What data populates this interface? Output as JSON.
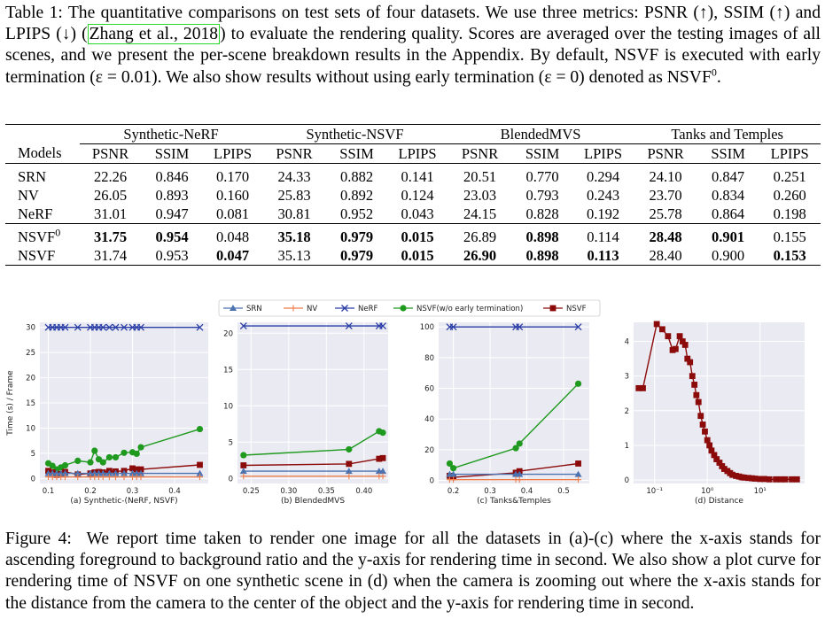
{
  "table_caption": {
    "label": "Table 1:",
    "text_a": "The quantitative comparisons on test sets of four datasets. We use three metrics: PSNR (↑), SSIM (↑) and LPIPS (↓) (",
    "cite": "Zhang et al., 2018",
    "text_b": ") to evaluate the rendering quality. Scores are averaged over the testing images of all scenes, and we present the per-scene breakdown results in the Appendix. By default, NSVF is executed with early termination (ε = 0.01). We also show results without using early termination (ε = 0) denoted as NSVF",
    "sup": "0",
    "text_c": "."
  },
  "table": {
    "groups": [
      "Synthetic-NeRF",
      "Synthetic-NSVF",
      "BlendedMVS",
      "Tanks and Temples"
    ],
    "models_header": "Models",
    "metrics": [
      "PSNR",
      "SSIM",
      "LPIPS"
    ],
    "rows": [
      {
        "model": "SRN",
        "sup": "",
        "values": [
          "22.26",
          "0.846",
          "0.170",
          "24.33",
          "0.882",
          "0.141",
          "20.51",
          "0.770",
          "0.294",
          "24.10",
          "0.847",
          "0.251"
        ],
        "bold": []
      },
      {
        "model": "NV",
        "sup": "",
        "values": [
          "26.05",
          "0.893",
          "0.160",
          "25.83",
          "0.892",
          "0.124",
          "23.03",
          "0.793",
          "0.243",
          "23.70",
          "0.834",
          "0.260"
        ],
        "bold": []
      },
      {
        "model": "NeRF",
        "sup": "",
        "values": [
          "31.01",
          "0.947",
          "0.081",
          "30.81",
          "0.952",
          "0.043",
          "24.15",
          "0.828",
          "0.192",
          "25.78",
          "0.864",
          "0.198"
        ],
        "bold": []
      },
      {
        "model": "NSVF",
        "sup": "0",
        "values": [
          "31.75",
          "0.954",
          "0.048",
          "35.18",
          "0.979",
          "0.015",
          "26.89",
          "0.898",
          "0.114",
          "28.48",
          "0.901",
          "0.155"
        ],
        "bold": [
          0,
          1,
          3,
          4,
          5,
          7,
          9,
          10
        ]
      },
      {
        "model": "NSVF",
        "sup": "",
        "values": [
          "31.74",
          "0.953",
          "0.047",
          "35.13",
          "0.979",
          "0.015",
          "26.90",
          "0.898",
          "0.113",
          "28.40",
          "0.900",
          "0.153"
        ],
        "bold": [
          2,
          4,
          5,
          6,
          7,
          8,
          11
        ]
      }
    ]
  },
  "legend": [
    {
      "name": "SRN",
      "color": "#4c72b0",
      "marker": "triangle"
    },
    {
      "name": "NV",
      "color": "#ec7c4a",
      "marker": "plus"
    },
    {
      "name": "NeRF",
      "color": "#2a3ea6",
      "marker": "x"
    },
    {
      "name": "NSVF(w/o early termination)",
      "color": "#1f9a1f",
      "marker": "circle"
    },
    {
      "name": "NSVF",
      "color": "#8b0a0a",
      "marker": "square"
    }
  ],
  "chart_data": [
    {
      "type": "line",
      "xlabel": "(a) Synthetic-(NeRF, NSVF)",
      "ylabel": "Time (s) / Frame",
      "xlim": [
        0.08,
        0.48
      ],
      "ylim": [
        -1,
        31
      ],
      "xticks": [
        0.1,
        0.2,
        0.3,
        0.4
      ],
      "yticks": [
        0,
        5,
        10,
        15,
        20,
        25,
        30
      ],
      "xtick_labels": [
        "0.1",
        "0.2",
        "0.3",
        "0.4"
      ],
      "ytick_labels": [
        "0",
        "5",
        "10",
        "15",
        "20",
        "25",
        "30"
      ],
      "series": [
        {
          "name": "NeRF",
          "x": [
            0.1,
            0.11,
            0.12,
            0.13,
            0.14,
            0.17,
            0.2,
            0.21,
            0.22,
            0.23,
            0.245,
            0.26,
            0.28,
            0.3,
            0.31,
            0.32,
            0.46
          ],
          "y": [
            30,
            30,
            30,
            30,
            30,
            30,
            30,
            30,
            30,
            30,
            30,
            30,
            30,
            30,
            30,
            30,
            30
          ]
        },
        {
          "name": "NSVF(w/o early termination)",
          "x": [
            0.1,
            0.11,
            0.12,
            0.13,
            0.14,
            0.17,
            0.2,
            0.21,
            0.22,
            0.23,
            0.245,
            0.26,
            0.28,
            0.3,
            0.31,
            0.32,
            0.46
          ],
          "y": [
            3,
            2.5,
            1.8,
            2.2,
            2.6,
            3.5,
            3.2,
            5.5,
            3.8,
            3.2,
            4.2,
            4.2,
            5.1,
            5.2,
            4.9,
            6.2,
            9.8
          ]
        },
        {
          "name": "NSVF",
          "x": [
            0.1,
            0.11,
            0.12,
            0.13,
            0.14,
            0.17,
            0.2,
            0.21,
            0.22,
            0.23,
            0.245,
            0.26,
            0.28,
            0.3,
            0.31,
            0.32,
            0.46
          ],
          "y": [
            1.5,
            1.2,
            0.7,
            0.9,
            1.3,
            0.8,
            1.0,
            1.2,
            1.3,
            1.2,
            1.5,
            1.4,
            1.5,
            2.0,
            1.8,
            1.8,
            2.7
          ]
        },
        {
          "name": "SRN",
          "x": [
            0.1,
            0.11,
            0.12,
            0.13,
            0.14,
            0.17,
            0.2,
            0.21,
            0.22,
            0.23,
            0.245,
            0.26,
            0.28,
            0.3,
            0.31,
            0.32,
            0.46
          ],
          "y": [
            1,
            1,
            1,
            1,
            1,
            1,
            1,
            1,
            1,
            1,
            1,
            1,
            1,
            1,
            1,
            1,
            1
          ]
        },
        {
          "name": "NV",
          "x": [
            0.1,
            0.11,
            0.12,
            0.13,
            0.14,
            0.17,
            0.2,
            0.21,
            0.22,
            0.23,
            0.245,
            0.26,
            0.28,
            0.3,
            0.31,
            0.32,
            0.46
          ],
          "y": [
            0.3,
            0.3,
            0.3,
            0.3,
            0.3,
            0.3,
            0.3,
            0.3,
            0.3,
            0.3,
            0.3,
            0.3,
            0.3,
            0.3,
            0.3,
            0.3,
            0.3
          ]
        }
      ]
    },
    {
      "type": "line",
      "xlabel": "(b) BlendedMVS",
      "ylabel": "",
      "xlim": [
        0.232,
        0.432
      ],
      "ylim": [
        -0.7,
        21.5
      ],
      "xticks": [
        0.25,
        0.3,
        0.35,
        0.4
      ],
      "yticks": [
        0,
        5,
        10,
        15,
        20
      ],
      "xtick_labels": [
        "0.25",
        "0.30",
        "0.35",
        "0.40"
      ],
      "ytick_labels": [
        "0",
        "5",
        "10",
        "15",
        "20"
      ],
      "series": [
        {
          "name": "NeRF",
          "x": [
            0.24,
            0.38,
            0.42,
            0.425
          ],
          "y": [
            21,
            21,
            21,
            21
          ]
        },
        {
          "name": "NSVF(w/o early termination)",
          "x": [
            0.24,
            0.38,
            0.42,
            0.425
          ],
          "y": [
            3.2,
            4,
            6.5,
            6.3
          ]
        },
        {
          "name": "NSVF",
          "x": [
            0.24,
            0.38,
            0.42,
            0.425
          ],
          "y": [
            1.8,
            2.0,
            2.7,
            2.8
          ]
        },
        {
          "name": "SRN",
          "x": [
            0.24,
            0.38,
            0.42,
            0.425
          ],
          "y": [
            1,
            1,
            1,
            1
          ]
        },
        {
          "name": "NV",
          "x": [
            0.24,
            0.38,
            0.42,
            0.425
          ],
          "y": [
            0.3,
            0.3,
            0.3,
            0.3
          ]
        }
      ]
    },
    {
      "type": "line",
      "xlabel": "(c) Tanks&Temples",
      "ylabel": "",
      "xlim": [
        0.16,
        0.57
      ],
      "ylim": [
        -2,
        103
      ],
      "xticks": [
        0.2,
        0.3,
        0.4,
        0.5
      ],
      "yticks": [
        0,
        20,
        40,
        60,
        80,
        100
      ],
      "xtick_labels": [
        "0.2",
        "0.3",
        "0.4",
        "0.5"
      ],
      "ytick_labels": [
        "0",
        "20",
        "40",
        "60",
        "80",
        "100"
      ],
      "series": [
        {
          "name": "NeRF",
          "x": [
            0.19,
            0.2,
            0.37,
            0.38,
            0.54
          ],
          "y": [
            100,
            100,
            100,
            100,
            100
          ]
        },
        {
          "name": "NSVF(w/o early termination)",
          "x": [
            0.19,
            0.2,
            0.37,
            0.38,
            0.54
          ],
          "y": [
            11,
            8,
            21,
            24,
            63
          ]
        },
        {
          "name": "NSVF",
          "x": [
            0.19,
            0.2,
            0.37,
            0.38,
            0.54
          ],
          "y": [
            3,
            2,
            5,
            6,
            11
          ]
        },
        {
          "name": "SRN",
          "x": [
            0.19,
            0.2,
            0.37,
            0.38,
            0.54
          ],
          "y": [
            4,
            4,
            4,
            4,
            4
          ]
        },
        {
          "name": "NV",
          "x": [
            0.19,
            0.2,
            0.37,
            0.38,
            0.54
          ],
          "y": [
            0.5,
            0.5,
            0.5,
            0.5,
            0.5
          ]
        }
      ]
    },
    {
      "type": "line",
      "xlabel": "(d) Distance",
      "ylabel": "",
      "xscale": "log",
      "xlim": [
        0.04,
        70
      ],
      "ylim": [
        -0.1,
        4.55
      ],
      "xticks": [
        0.1,
        1,
        10
      ],
      "yticks": [
        0,
        1,
        2,
        3,
        4
      ],
      "xtick_labels": [
        "10⁻¹",
        "10⁰",
        "10¹"
      ],
      "ytick_labels": [
        "0",
        "1",
        "2",
        "3",
        "4"
      ],
      "series": [
        {
          "name": "NSVF",
          "x": [
            0.05,
            0.06,
            0.11,
            0.14,
            0.18,
            0.22,
            0.25,
            0.3,
            0.34,
            0.38,
            0.42,
            0.47,
            0.52,
            0.57,
            0.62,
            0.68,
            0.75,
            0.82,
            0.9,
            1.0,
            1.1,
            1.2,
            1.35,
            1.5,
            1.7,
            1.9,
            2.1,
            2.4,
            2.7,
            3.0,
            3.5,
            4,
            4.5,
            5,
            6,
            7,
            8,
            10,
            12,
            15,
            20,
            25,
            30,
            40,
            50
          ],
          "y": [
            2.65,
            2.65,
            4.5,
            4.35,
            4.15,
            3.75,
            3.78,
            4.15,
            4.0,
            3.9,
            3.5,
            3.4,
            3.0,
            2.75,
            2.45,
            2.25,
            1.85,
            1.6,
            1.4,
            1.15,
            1.0,
            0.85,
            0.72,
            0.6,
            0.5,
            0.4,
            0.32,
            0.26,
            0.2,
            0.15,
            0.12,
            0.1,
            0.08,
            0.07,
            0.06,
            0.05,
            0.04,
            0.03,
            0.03,
            0.02,
            0.02,
            0.02,
            0.02,
            0.02,
            0.02
          ]
        }
      ]
    }
  ],
  "figure_caption": {
    "label": "Figure 4:",
    "text": "We report time taken to render one image for all the datasets in (a)-(c) where the x-axis stands for ascending foreground to background ratio and the y-axis for rendering time in second. We also show a plot curve for rendering time of NSVF on one synthetic scene in (d) when the camera is zooming out where the x-axis stands for the distance from the camera to the center of the object and the y-axis for rendering time in second."
  }
}
